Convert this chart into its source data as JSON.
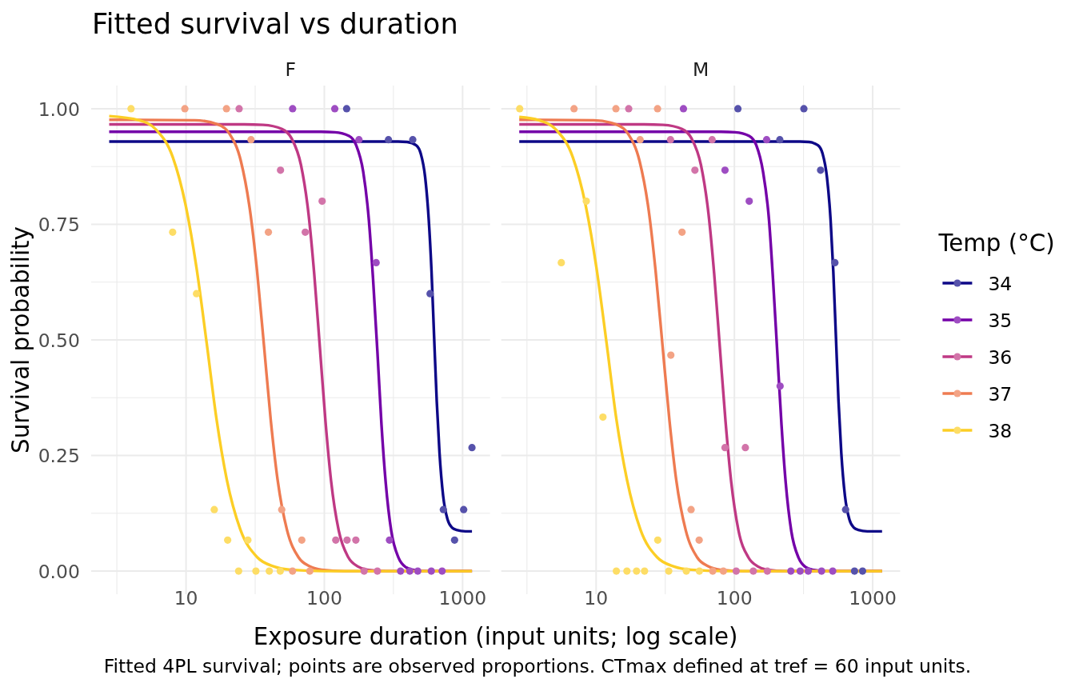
{
  "chart_data": [
    {
      "type": "line",
      "title": "Fitted survival vs duration",
      "subtitle": "F",
      "xlabel": "Exposure duration (input units; log scale)",
      "ylabel": "Survival probability",
      "annotations": [
        "Fitted 4PL survival; points are observed proportions. CTmax defined at tref = 60 input units."
      ],
      "log": "x",
      "grid": true,
      "xlim": [
        2.06,
        1580
      ],
      "ylim": [
        -0.05,
        1.05
      ],
      "xticks": [
        {
          "value": 3.16,
          "label": null
        },
        10,
        {
          "value": 31.6,
          "label": null
        },
        100,
        {
          "value": 316,
          "label": null
        },
        1000
      ],
      "yticks": [
        {
          "value": 0,
          "label": "0.00"
        },
        {
          "value": 0.125,
          "label": null
        },
        {
          "value": 0.25,
          "label": "0.25"
        },
        {
          "value": 0.375,
          "label": null
        },
        {
          "value": 0.5,
          "label": "0.50"
        },
        {
          "value": 0.625,
          "label": null
        },
        {
          "value": 0.75,
          "label": "0.75"
        },
        {
          "value": 0.875,
          "label": null
        },
        {
          "value": 1,
          "label": "1.00"
        }
      ],
      "series": [
        {
          "color": "#0d0887",
          "x": [
            2.78,
            342,
            397,
            461,
            498,
            536,
            569,
            596,
            622,
            650,
            681,
            723,
            778,
            839,
            904,
            1050,
            1169
          ],
          "values": [
            0.929,
            0.929,
            0.928,
            0.921,
            0.903,
            0.852,
            0.76,
            0.648,
            0.508,
            0.368,
            0.255,
            0.163,
            0.112,
            0.094,
            0.089,
            0.086,
            0.086
          ]
        },
        {
          "color": "#7401a8",
          "x": [
            2.78,
            94.4,
            119,
            151,
            170,
            191,
            210,
            225,
            242,
            259,
            278,
            305,
            344,
            386,
            434,
            550,
            1169
          ],
          "values": [
            0.95,
            0.95,
            0.949,
            0.941,
            0.921,
            0.864,
            0.759,
            0.633,
            0.475,
            0.317,
            0.191,
            0.086,
            0.029,
            0.009,
            0.003,
            0,
            0
          ]
        },
        {
          "color": "#bf3984",
          "x": [
            2.78,
            26.3,
            36.1,
            49.4,
            57.9,
            67.8,
            76.9,
            84.5,
            92.9,
            102,
            112,
            127,
            149,
            175,
            204,
            280,
            1169
          ],
          "values": [
            0.966,
            0.966,
            0.965,
            0.956,
            0.936,
            0.878,
            0.772,
            0.643,
            0.483,
            0.323,
            0.194,
            0.088,
            0.03,
            0.01,
            0.003,
            0,
            0
          ]
        },
        {
          "color": "#ee7b51",
          "x": [
            2.78,
            11.6,
            17.0,
            20.6,
            24.9,
            29.0,
            32.6,
            36.6,
            41.0,
            46.0,
            53.7,
            65.0,
            78.7,
            95.5,
            140,
            1169
          ],
          "values": [
            0.976,
            0.975,
            0.966,
            0.946,
            0.887,
            0.78,
            0.65,
            0.488,
            0.326,
            0.196,
            0.089,
            0.03,
            0.01,
            0.003,
            0,
            0
          ]
        },
        {
          "color": "#fcce25",
          "x": [
            2.78,
            4.57,
            6.05,
            8.02,
            10.0,
            11.9,
            14.1,
            16.6,
            19.7,
            24.7,
            32.7,
            43.3,
            57.3,
            100,
            1169
          ],
          "values": [
            0.984,
            0.975,
            0.955,
            0.895,
            0.787,
            0.656,
            0.493,
            0.329,
            0.198,
            0.09,
            0.03,
            0.01,
            0.003,
            0,
            0
          ]
        },
        {
          "type": "scatter",
          "marker": "circle",
          "color": "#5652ab",
          "x": [
            145,
            291,
            436,
            582,
            726,
            875,
            1018,
            1169
          ],
          "values": [
            1,
            0.933,
            0.933,
            0.6,
            0.133,
            0.067,
            0.133,
            0.267
          ]
        },
        {
          "type": "scatter",
          "marker": "circle",
          "color": "#9e4dc2",
          "x": [
            59,
            119,
            178,
            237,
            296,
            356,
            415,
            474,
            594,
            711
          ],
          "values": [
            1,
            1,
            0.933,
            0.667,
            0.067,
            0,
            0,
            0,
            0,
            0
          ]
        },
        {
          "type": "scatter",
          "marker": "circle",
          "color": "#d274a9",
          "x": [
            24.2,
            48.2,
            72.8,
            96.4,
            121,
            146,
            169,
            194,
            242
          ],
          "values": [
            1,
            0.867,
            0.733,
            0.8,
            0.067,
            0.067,
            0.067,
            0,
            0
          ]
        },
        {
          "type": "scatter",
          "marker": "circle",
          "color": "#f3a385",
          "x": [
            9.8,
            19.6,
            29.5,
            39.4,
            49.2,
            58.9,
            68.7,
            78.5
          ],
          "values": [
            1,
            1,
            0.933,
            0.733,
            0.133,
            0,
            0.067,
            0
          ]
        },
        {
          "type": "scatter",
          "marker": "circle",
          "color": "#fddd66",
          "x": [
            4.0,
            8.0,
            11.9,
            16.0,
            20.0,
            24.0,
            28.0,
            32.0,
            40.0,
            48.0
          ],
          "values": [
            1,
            0.733,
            0.6,
            0.133,
            0.067,
            0,
            0.067,
            0,
            0,
            0
          ]
        }
      ]
    },
    {
      "type": "line",
      "subtitle": "M",
      "log": "x",
      "grid": true,
      "tick_labels": "x",
      "legend": "right",
      "legend_title": "Temp (°C)",
      "xlim": [
        2.06,
        1580
      ],
      "ylim": [
        -0.05,
        1.05
      ],
      "xticks": [
        {
          "value": 3.16,
          "label": null
        },
        10,
        {
          "value": 31.6,
          "label": null
        },
        100,
        {
          "value": 316,
          "label": null
        },
        1000
      ],
      "yticks": [
        0,
        {
          "value": 0.125,
          "label": null
        },
        0.25,
        {
          "value": 0.375,
          "label": null
        },
        0.5,
        {
          "value": 0.625,
          "label": null
        },
        0.75,
        {
          "value": 0.875,
          "label": null
        },
        1
      ],
      "series": [
        {
          "name": "34",
          "color": "#0d0887",
          "x": [
            2.78,
            298,
            346,
            402,
            434,
            467,
            496,
            519,
            542,
            566,
            593,
            630,
            678,
            731,
            787,
            915,
            1169
          ],
          "values": [
            0.929,
            0.929,
            0.928,
            0.921,
            0.903,
            0.852,
            0.76,
            0.648,
            0.508,
            0.368,
            0.255,
            0.163,
            0.112,
            0.094,
            0.089,
            0.086,
            0.086
          ]
        },
        {
          "name": "35",
          "color": "#7401a8",
          "x": [
            2.78,
            79.8,
            101,
            128,
            144,
            161,
            178,
            190,
            204,
            219,
            235,
            258,
            291,
            326,
            367,
            465,
            1169
          ],
          "values": [
            0.95,
            0.95,
            0.949,
            0.941,
            0.921,
            0.864,
            0.759,
            0.633,
            0.475,
            0.317,
            0.191,
            0.086,
            0.029,
            0.009,
            0.003,
            0,
            0
          ]
        },
        {
          "name": "36",
          "color": "#bf3984",
          "x": [
            2.78,
            22.2,
            30.5,
            41.8,
            48.9,
            57.3,
            65.0,
            71.4,
            78.5,
            86.3,
            94.7,
            107,
            126,
            148,
            172,
            237,
            1169
          ],
          "values": [
            0.966,
            0.966,
            0.965,
            0.956,
            0.936,
            0.878,
            0.772,
            0.643,
            0.483,
            0.323,
            0.194,
            0.088,
            0.03,
            0.01,
            0.003,
            0,
            0
          ]
        },
        {
          "name": "37",
          "color": "#ee7b51",
          "x": [
            2.78,
            9.58,
            14.0,
            17.0,
            20.6,
            24.0,
            26.9,
            30.2,
            33.9,
            38.0,
            44.4,
            53.7,
            65.0,
            78.9,
            116,
            1169
          ],
          "values": [
            0.976,
            0.975,
            0.966,
            0.946,
            0.887,
            0.78,
            0.65,
            0.488,
            0.326,
            0.196,
            0.089,
            0.03,
            0.01,
            0.003,
            0,
            0
          ]
        },
        {
          "name": "38",
          "color": "#fcce25",
          "x": [
            2.78,
            3.86,
            5.11,
            6.78,
            8.45,
            10.05,
            11.9,
            14.0,
            16.7,
            20.9,
            27.6,
            36.6,
            48.4,
            84.5,
            1169
          ],
          "values": [
            0.982,
            0.975,
            0.955,
            0.895,
            0.787,
            0.656,
            0.493,
            0.329,
            0.198,
            0.09,
            0.03,
            0.01,
            0.003,
            0,
            0
          ]
        },
        {
          "type": "scatter",
          "marker": "circle",
          "color": "#5652ab",
          "x": [
            106,
            213,
            318,
            420,
            533,
            637,
            739,
            845
          ],
          "values": [
            1,
            0.933,
            1,
            0.867,
            0.667,
            0.133,
            0,
            0
          ]
        },
        {
          "type": "scatter",
          "marker": "circle",
          "color": "#9e4dc2",
          "x": [
            42.8,
            85.5,
            128,
            171,
            214,
            256,
            299,
            342,
            427,
            514
          ],
          "values": [
            1,
            0.867,
            0.8,
            0.933,
            0.4,
            0,
            0,
            0,
            0,
            0
          ]
        },
        {
          "type": "scatter",
          "marker": "circle",
          "color": "#d274a9",
          "x": [
            17.2,
            34.5,
            51.8,
            69.0,
            85.5,
            103,
            120,
            137,
            173
          ],
          "values": [
            1,
            0.933,
            0.867,
            0.933,
            0.267,
            0,
            0.267,
            0,
            0
          ]
        },
        {
          "type": "scatter",
          "marker": "circle",
          "color": "#f3a385",
          "x": [
            6.92,
            13.9,
            20.8,
            27.8,
            34.7,
            41.8,
            48.6,
            55.6,
            69.7,
            83.2
          ],
          "values": [
            1,
            1,
            0.933,
            1,
            0.467,
            0.733,
            0.133,
            0.067,
            0,
            0
          ]
        },
        {
          "type": "scatter",
          "marker": "circle",
          "color": "#fddd66",
          "x": [
            2.8,
            5.6,
            8.49,
            11.2,
            14.0,
            16.7,
            19.6,
            22.4,
            27.9,
            33.5,
            44.9,
            55.8
          ],
          "values": [
            1,
            0.667,
            0.8,
            0.333,
            0,
            0,
            0,
            0,
            0.067,
            0,
            0,
            0
          ]
        }
      ]
    }
  ]
}
